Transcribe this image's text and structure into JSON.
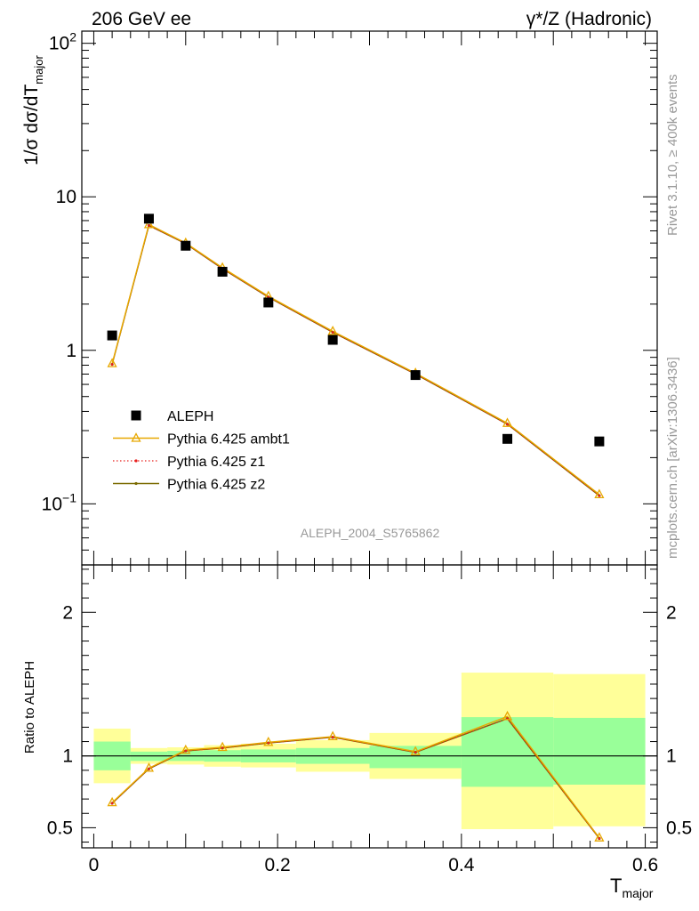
{
  "header": {
    "left_title": "206 GeV ee",
    "right_title": "γ*/Z (Hadronic)"
  },
  "side_labels": {
    "rivet": "Rivet 3.1.10, ≥ 400k events",
    "mcplots": "mcplots.cern.ch [arXiv:1306.3436]"
  },
  "analysis_id": "ALEPH_2004_S5765862",
  "colors": {
    "data": "#000000",
    "ambt1": "#e8a800",
    "z1": "#e8201e",
    "z2": "#7a6a00",
    "band_outer": "#ffff99",
    "band_inner": "#99ff99"
  },
  "chart_data": [
    {
      "type": "scatter",
      "panel": "main",
      "ylabel": "1/σ dσ/dT",
      "ylabel_sub": "major",
      "yscale": "log",
      "xlim": [
        -0.013,
        0.613
      ],
      "ylim": [
        0.04,
        120
      ],
      "y_tick_labels": [
        "10",
        "1"
      ],
      "y_tick_exp_labels": [
        {
          "base": "10",
          "exp": "2",
          "value": 100
        },
        {
          "base": "10",
          "exp": "−1",
          "value": 0.1
        }
      ],
      "legend_position": "bottom-left",
      "x": [
        0.02,
        0.06,
        0.1,
        0.14,
        0.19,
        0.26,
        0.35,
        0.45,
        0.55
      ],
      "series": [
        {
          "name": "ALEPH",
          "style": "squares",
          "values": [
            1.25,
            7.2,
            4.8,
            3.25,
            2.05,
            1.17,
            0.69,
            0.265,
            0.255
          ]
        },
        {
          "name": "Pythia 6.425 ambt1",
          "style": "line-triangles",
          "values": [
            0.82,
            6.6,
            5.0,
            3.45,
            2.25,
            1.33,
            0.71,
            0.335,
            0.115
          ]
        },
        {
          "name": "Pythia 6.425 z1",
          "style": "dotted-dots",
          "values": [
            0.81,
            6.5,
            4.95,
            3.4,
            2.22,
            1.31,
            0.7,
            0.33,
            0.113
          ]
        },
        {
          "name": "Pythia 6.425 z2",
          "style": "line-dots",
          "values": [
            0.81,
            6.5,
            4.95,
            3.4,
            2.22,
            1.31,
            0.7,
            0.33,
            0.113
          ]
        }
      ]
    },
    {
      "type": "line",
      "panel": "ratio",
      "ylabel": "Ratio to ALEPH",
      "xlabel": "T",
      "xlabel_sub": "major",
      "xlim": [
        -0.013,
        0.613
      ],
      "ylim": [
        0.36,
        2.33
      ],
      "x_tick_labels": [
        "0",
        "0.2",
        "0.4",
        "0.6"
      ],
      "y_tick_labels": [
        "0.5",
        "1",
        "2"
      ],
      "reference": 1,
      "bins": [
        [
          0.0,
          0.04
        ],
        [
          0.04,
          0.08
        ],
        [
          0.08,
          0.12
        ],
        [
          0.12,
          0.16
        ],
        [
          0.16,
          0.22
        ],
        [
          0.22,
          0.3
        ],
        [
          0.3,
          0.4
        ],
        [
          0.4,
          0.5
        ],
        [
          0.5,
          0.6
        ]
      ],
      "band_inner": [
        [
          0.9,
          1.1
        ],
        [
          0.965,
          1.03
        ],
        [
          0.965,
          1.035
        ],
        [
          0.96,
          1.04
        ],
        [
          0.955,
          1.045
        ],
        [
          0.945,
          1.055
        ],
        [
          0.915,
          1.07
        ],
        [
          0.785,
          1.27
        ],
        [
          0.8,
          1.265
        ]
      ],
      "band_outer": [
        [
          0.81,
          1.19
        ],
        [
          0.945,
          1.055
        ],
        [
          0.94,
          1.06
        ],
        [
          0.925,
          1.075
        ],
        [
          0.92,
          1.085
        ],
        [
          0.89,
          1.11
        ],
        [
          0.84,
          1.16
        ],
        [
          0.49,
          1.58
        ],
        [
          0.51,
          1.57
        ]
      ],
      "x": [
        0.02,
        0.06,
        0.1,
        0.14,
        0.19,
        0.26,
        0.35,
        0.45,
        0.55
      ],
      "series": [
        {
          "name": "Pythia 6.425 ambt1",
          "values": [
            0.675,
            0.915,
            1.04,
            1.06,
            1.095,
            1.135,
            1.03,
            1.275,
            0.43
          ]
        },
        {
          "name": "Pythia 6.425 z1",
          "values": [
            0.67,
            0.91,
            1.035,
            1.055,
            1.09,
            1.13,
            1.025,
            1.26,
            0.425
          ]
        },
        {
          "name": "Pythia 6.425 z2",
          "values": [
            0.67,
            0.91,
            1.035,
            1.055,
            1.09,
            1.13,
            1.025,
            1.26,
            0.425
          ]
        }
      ]
    }
  ]
}
